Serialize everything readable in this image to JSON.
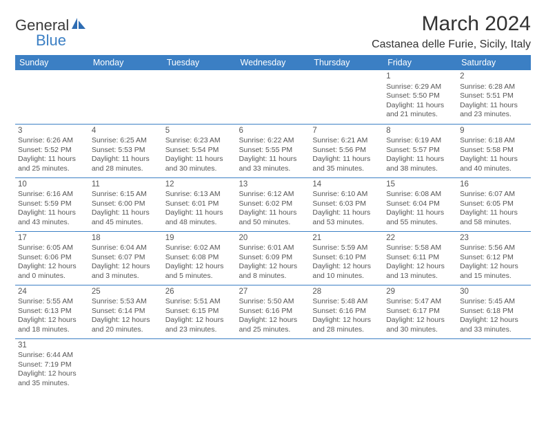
{
  "logo": {
    "main": "General",
    "sub": "Blue"
  },
  "title": "March 2024",
  "location": "Castanea delle Furie, Sicily, Italy",
  "colors": {
    "header_bg": "#3b7fc4",
    "header_text": "#ffffff",
    "cell_border": "#3b7fc4",
    "text": "#555555",
    "title_text": "#333333",
    "background": "#ffffff"
  },
  "fonts": {
    "title_size": 30,
    "location_size": 16,
    "header_size": 12.5,
    "cell_size": 10.5,
    "daynum_size": 11.5
  },
  "weekdays": [
    "Sunday",
    "Monday",
    "Tuesday",
    "Wednesday",
    "Thursday",
    "Friday",
    "Saturday"
  ],
  "weeks": [
    [
      null,
      null,
      null,
      null,
      null,
      {
        "d": "1",
        "sr": "Sunrise: 6:29 AM",
        "ss": "Sunset: 5:50 PM",
        "dl1": "Daylight: 11 hours",
        "dl2": "and 21 minutes."
      },
      {
        "d": "2",
        "sr": "Sunrise: 6:28 AM",
        "ss": "Sunset: 5:51 PM",
        "dl1": "Daylight: 11 hours",
        "dl2": "and 23 minutes."
      }
    ],
    [
      {
        "d": "3",
        "sr": "Sunrise: 6:26 AM",
        "ss": "Sunset: 5:52 PM",
        "dl1": "Daylight: 11 hours",
        "dl2": "and 25 minutes."
      },
      {
        "d": "4",
        "sr": "Sunrise: 6:25 AM",
        "ss": "Sunset: 5:53 PM",
        "dl1": "Daylight: 11 hours",
        "dl2": "and 28 minutes."
      },
      {
        "d": "5",
        "sr": "Sunrise: 6:23 AM",
        "ss": "Sunset: 5:54 PM",
        "dl1": "Daylight: 11 hours",
        "dl2": "and 30 minutes."
      },
      {
        "d": "6",
        "sr": "Sunrise: 6:22 AM",
        "ss": "Sunset: 5:55 PM",
        "dl1": "Daylight: 11 hours",
        "dl2": "and 33 minutes."
      },
      {
        "d": "7",
        "sr": "Sunrise: 6:21 AM",
        "ss": "Sunset: 5:56 PM",
        "dl1": "Daylight: 11 hours",
        "dl2": "and 35 minutes."
      },
      {
        "d": "8",
        "sr": "Sunrise: 6:19 AM",
        "ss": "Sunset: 5:57 PM",
        "dl1": "Daylight: 11 hours",
        "dl2": "and 38 minutes."
      },
      {
        "d": "9",
        "sr": "Sunrise: 6:18 AM",
        "ss": "Sunset: 5:58 PM",
        "dl1": "Daylight: 11 hours",
        "dl2": "and 40 minutes."
      }
    ],
    [
      {
        "d": "10",
        "sr": "Sunrise: 6:16 AM",
        "ss": "Sunset: 5:59 PM",
        "dl1": "Daylight: 11 hours",
        "dl2": "and 43 minutes."
      },
      {
        "d": "11",
        "sr": "Sunrise: 6:15 AM",
        "ss": "Sunset: 6:00 PM",
        "dl1": "Daylight: 11 hours",
        "dl2": "and 45 minutes."
      },
      {
        "d": "12",
        "sr": "Sunrise: 6:13 AM",
        "ss": "Sunset: 6:01 PM",
        "dl1": "Daylight: 11 hours",
        "dl2": "and 48 minutes."
      },
      {
        "d": "13",
        "sr": "Sunrise: 6:12 AM",
        "ss": "Sunset: 6:02 PM",
        "dl1": "Daylight: 11 hours",
        "dl2": "and 50 minutes."
      },
      {
        "d": "14",
        "sr": "Sunrise: 6:10 AM",
        "ss": "Sunset: 6:03 PM",
        "dl1": "Daylight: 11 hours",
        "dl2": "and 53 minutes."
      },
      {
        "d": "15",
        "sr": "Sunrise: 6:08 AM",
        "ss": "Sunset: 6:04 PM",
        "dl1": "Daylight: 11 hours",
        "dl2": "and 55 minutes."
      },
      {
        "d": "16",
        "sr": "Sunrise: 6:07 AM",
        "ss": "Sunset: 6:05 PM",
        "dl1": "Daylight: 11 hours",
        "dl2": "and 58 minutes."
      }
    ],
    [
      {
        "d": "17",
        "sr": "Sunrise: 6:05 AM",
        "ss": "Sunset: 6:06 PM",
        "dl1": "Daylight: 12 hours",
        "dl2": "and 0 minutes."
      },
      {
        "d": "18",
        "sr": "Sunrise: 6:04 AM",
        "ss": "Sunset: 6:07 PM",
        "dl1": "Daylight: 12 hours",
        "dl2": "and 3 minutes."
      },
      {
        "d": "19",
        "sr": "Sunrise: 6:02 AM",
        "ss": "Sunset: 6:08 PM",
        "dl1": "Daylight: 12 hours",
        "dl2": "and 5 minutes."
      },
      {
        "d": "20",
        "sr": "Sunrise: 6:01 AM",
        "ss": "Sunset: 6:09 PM",
        "dl1": "Daylight: 12 hours",
        "dl2": "and 8 minutes."
      },
      {
        "d": "21",
        "sr": "Sunrise: 5:59 AM",
        "ss": "Sunset: 6:10 PM",
        "dl1": "Daylight: 12 hours",
        "dl2": "and 10 minutes."
      },
      {
        "d": "22",
        "sr": "Sunrise: 5:58 AM",
        "ss": "Sunset: 6:11 PM",
        "dl1": "Daylight: 12 hours",
        "dl2": "and 13 minutes."
      },
      {
        "d": "23",
        "sr": "Sunrise: 5:56 AM",
        "ss": "Sunset: 6:12 PM",
        "dl1": "Daylight: 12 hours",
        "dl2": "and 15 minutes."
      }
    ],
    [
      {
        "d": "24",
        "sr": "Sunrise: 5:55 AM",
        "ss": "Sunset: 6:13 PM",
        "dl1": "Daylight: 12 hours",
        "dl2": "and 18 minutes."
      },
      {
        "d": "25",
        "sr": "Sunrise: 5:53 AM",
        "ss": "Sunset: 6:14 PM",
        "dl1": "Daylight: 12 hours",
        "dl2": "and 20 minutes."
      },
      {
        "d": "26",
        "sr": "Sunrise: 5:51 AM",
        "ss": "Sunset: 6:15 PM",
        "dl1": "Daylight: 12 hours",
        "dl2": "and 23 minutes."
      },
      {
        "d": "27",
        "sr": "Sunrise: 5:50 AM",
        "ss": "Sunset: 6:16 PM",
        "dl1": "Daylight: 12 hours",
        "dl2": "and 25 minutes."
      },
      {
        "d": "28",
        "sr": "Sunrise: 5:48 AM",
        "ss": "Sunset: 6:16 PM",
        "dl1": "Daylight: 12 hours",
        "dl2": "and 28 minutes."
      },
      {
        "d": "29",
        "sr": "Sunrise: 5:47 AM",
        "ss": "Sunset: 6:17 PM",
        "dl1": "Daylight: 12 hours",
        "dl2": "and 30 minutes."
      },
      {
        "d": "30",
        "sr": "Sunrise: 5:45 AM",
        "ss": "Sunset: 6:18 PM",
        "dl1": "Daylight: 12 hours",
        "dl2": "and 33 minutes."
      }
    ],
    [
      {
        "d": "31",
        "sr": "Sunrise: 6:44 AM",
        "ss": "Sunset: 7:19 PM",
        "dl1": "Daylight: 12 hours",
        "dl2": "and 35 minutes."
      },
      null,
      null,
      null,
      null,
      null,
      null
    ]
  ]
}
